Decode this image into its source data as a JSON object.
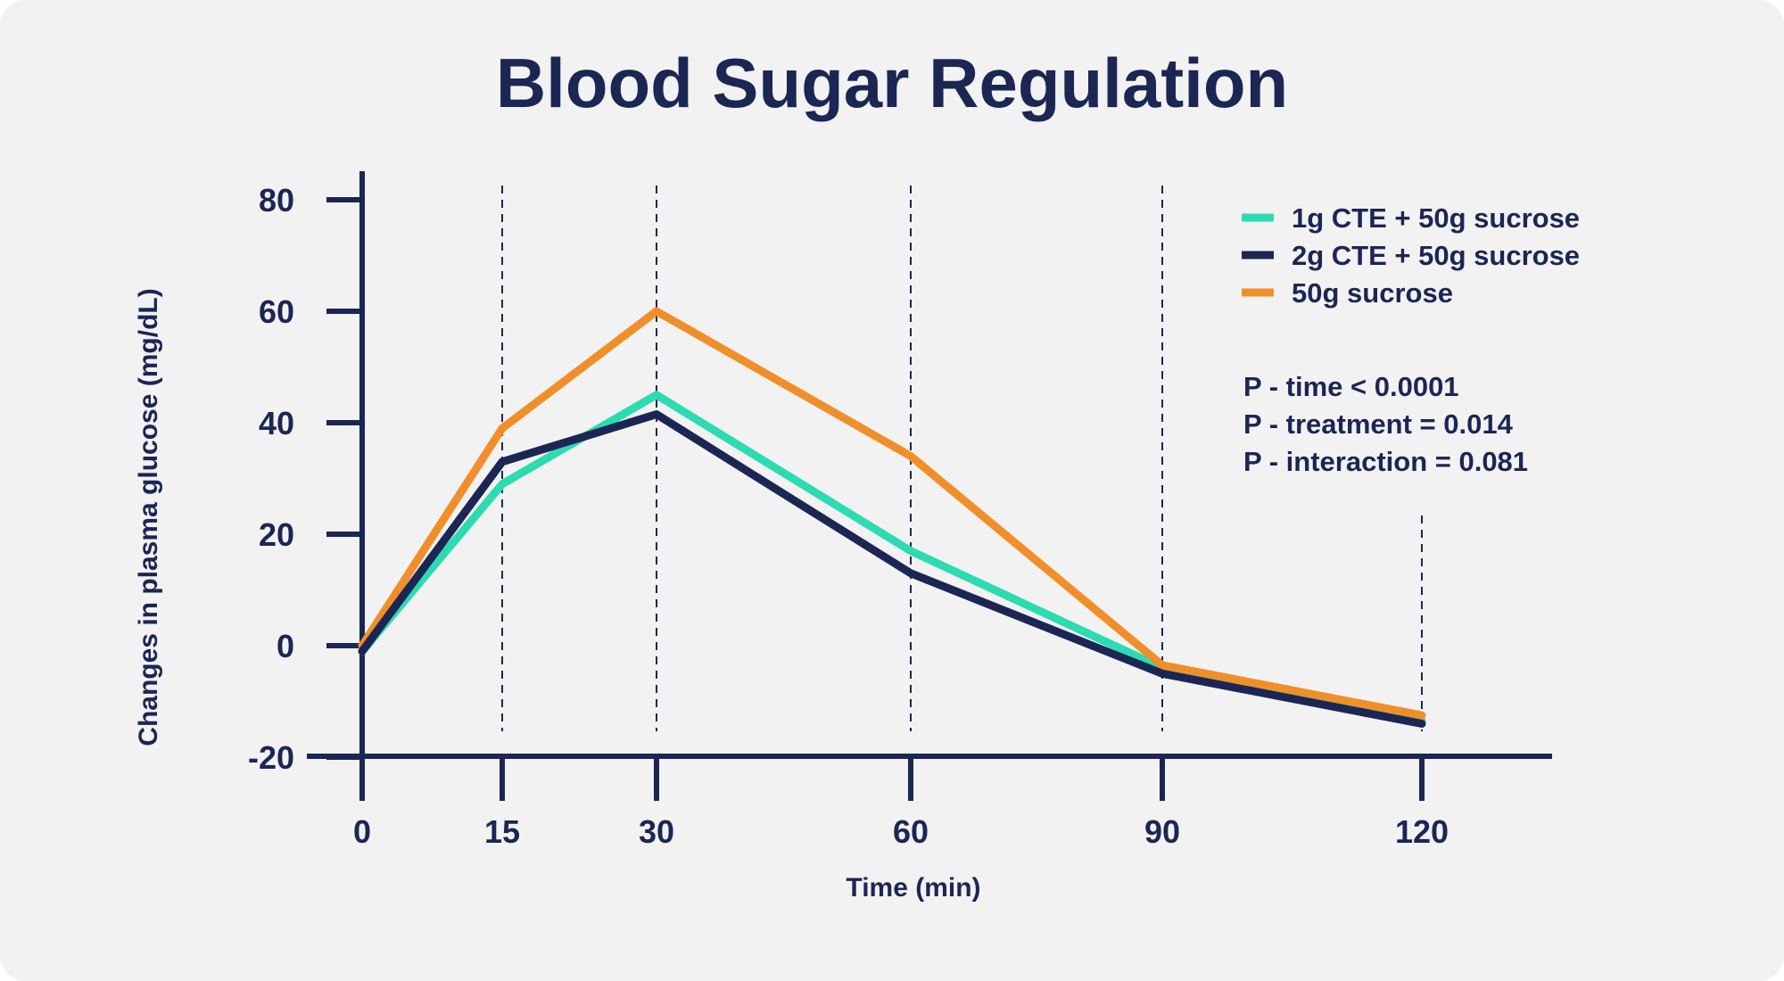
{
  "chart_data": {
    "type": "line",
    "title": "Blood Sugar Regulation",
    "xlabel": "Time (min)",
    "ylabel": "Changes in plasma glucose (mg/dL)",
    "x": [
      0,
      15,
      30,
      60,
      90,
      120
    ],
    "x_tick_labels": [
      "0",
      "15",
      "30",
      "60",
      "90",
      "120"
    ],
    "y_ticks": [
      80,
      60,
      40,
      20,
      0,
      -20
    ],
    "y_tick_labels": [
      "80",
      "60",
      "40",
      "20",
      "0",
      "-20"
    ],
    "ylim": [
      -20,
      85
    ],
    "grid": "vertical dashed lines at each time point",
    "legend_position": "top-right",
    "series": [
      {
        "name": "1g CTE + 50g sucrose",
        "color": "#2ddbb0",
        "values": [
          -1,
          29,
          45,
          17,
          -4,
          -13.5
        ]
      },
      {
        "name": "2g CTE + 50g sucrose",
        "color": "#1c2654",
        "values": [
          -1,
          33,
          41.5,
          13,
          -5,
          -14
        ]
      },
      {
        "name": "50g sucrose",
        "color": "#f08f2a",
        "values": [
          0,
          39,
          60,
          34,
          -3.5,
          -12.5
        ]
      }
    ],
    "annotations": [
      "P - time < 0.0001",
      "P - treatment = 0.014",
      "P - interaction = 0.081"
    ]
  },
  "colors": {
    "axis": "#1c2654",
    "background": "#f2f2f2"
  }
}
